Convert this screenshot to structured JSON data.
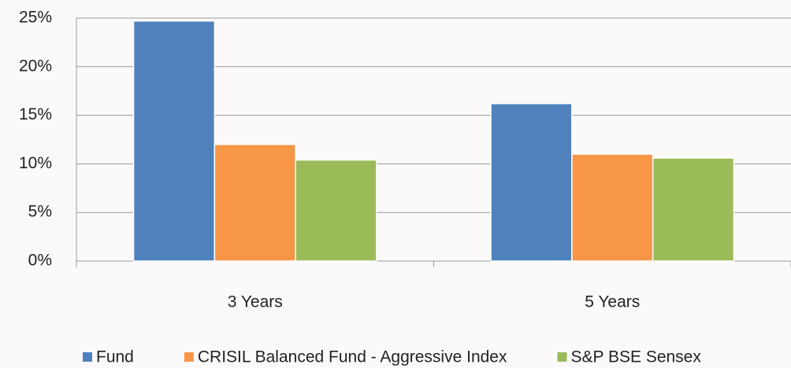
{
  "chart_data": {
    "type": "bar",
    "categories": [
      "3 Years",
      "5 Years"
    ],
    "series": [
      {
        "name": "Fund",
        "color": "#4f81bd",
        "values": [
          24.7,
          16.2
        ]
      },
      {
        "name": "CRISIL Balanced Fund - Aggressive Index",
        "color": "#f79646",
        "values": [
          12.0,
          11.0
        ]
      },
      {
        "name": "S&P BSE Sensex",
        "color": "#9bbb59",
        "values": [
          10.4,
          10.6
        ]
      }
    ],
    "ylim": [
      0,
      25
    ],
    "yticks": [
      {
        "value": 0,
        "label": "0%"
      },
      {
        "value": 5,
        "label": "5%"
      },
      {
        "value": 10,
        "label": "10%"
      },
      {
        "value": 15,
        "label": "15%"
      },
      {
        "value": 20,
        "label": "20%"
      },
      {
        "value": 25,
        "label": "25%"
      }
    ],
    "grid": true,
    "legend": "bottom"
  }
}
